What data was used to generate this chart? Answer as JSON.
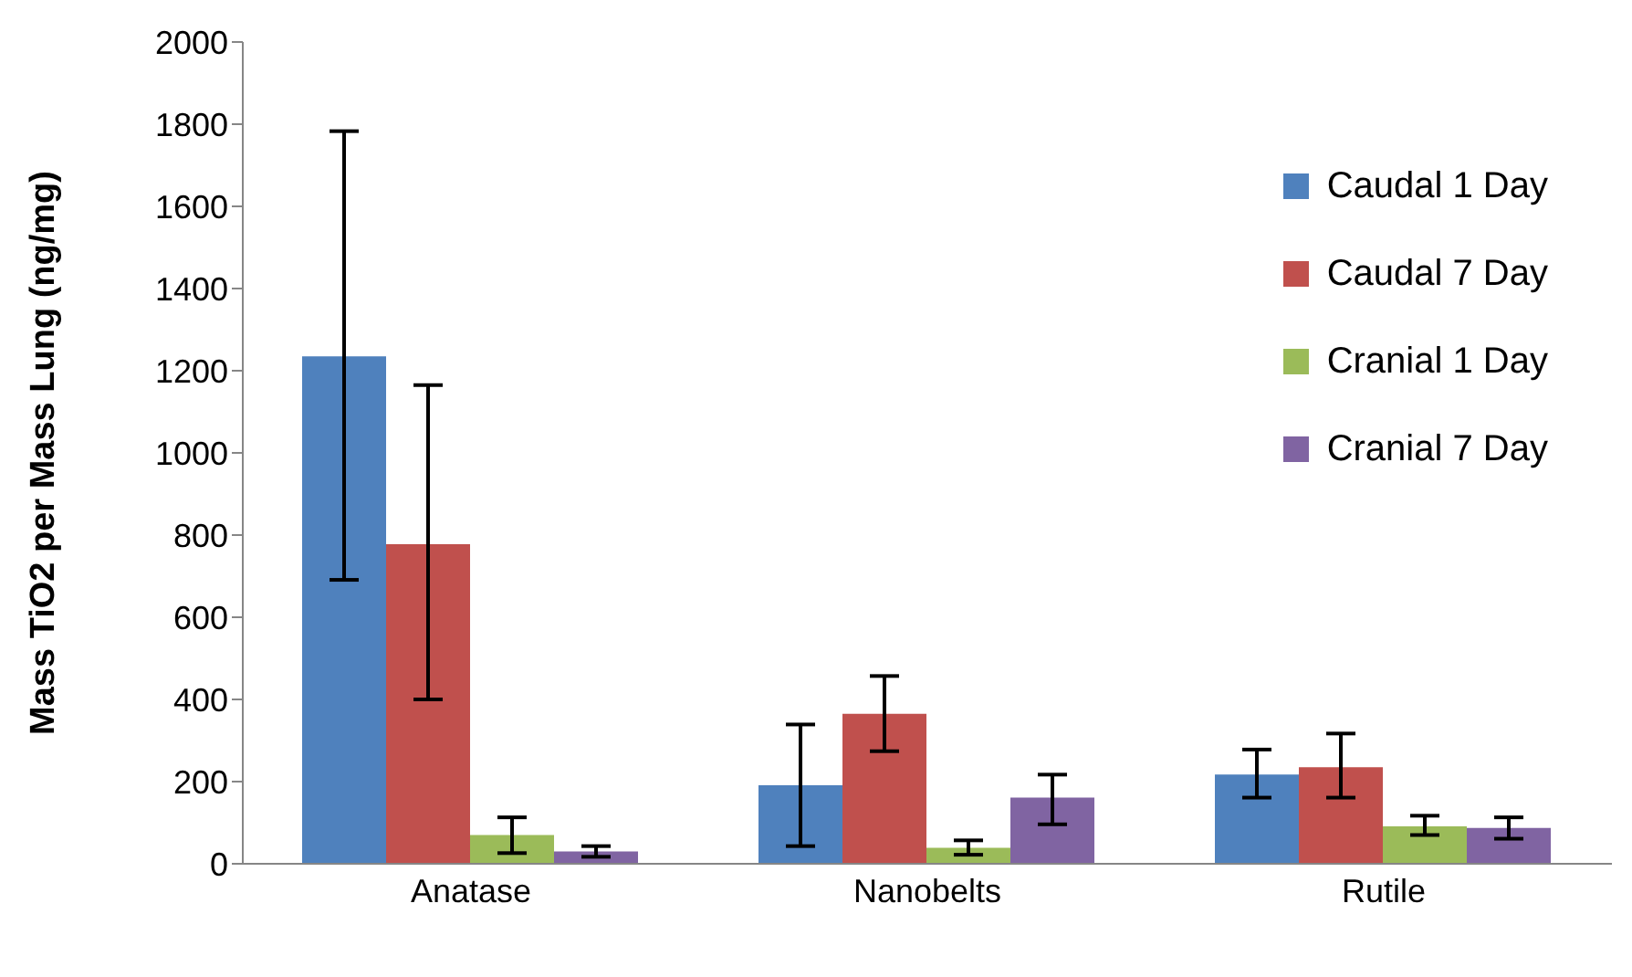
{
  "chart_data": {
    "type": "bar",
    "ylabel": "Mass TiO2 per Mass Lung (ng/mg)",
    "categories": [
      "Anatase",
      "Nanobelts",
      "Rutile"
    ],
    "series": [
      {
        "name": "Caudal 1 Day",
        "color": "#4f81bd",
        "values": [
          1235,
          191,
          217
        ],
        "errors": [
          [
            691,
            1783
          ],
          [
            43,
            339
          ],
          [
            161,
            278
          ]
        ]
      },
      {
        "name": "Caudal 7 Day",
        "color": "#c0504d",
        "values": [
          778,
          365,
          235
        ],
        "errors": [
          [
            400,
            1165
          ],
          [
            274,
            457
          ],
          [
            161,
            317
          ]
        ]
      },
      {
        "name": "Cranial 1 Day",
        "color": "#9bbb59",
        "values": [
          70,
          39,
          91
        ],
        "errors": [
          [
            26,
            113
          ],
          [
            22,
            57
          ],
          [
            70,
            117
          ]
        ]
      },
      {
        "name": "Cranial 7 Day",
        "color": "#8064a2",
        "values": [
          30,
          161,
          87
        ],
        "errors": [
          [
            17,
            43
          ],
          [
            96,
            217
          ],
          [
            61,
            113
          ]
        ]
      }
    ],
    "ylim": [
      0,
      2000
    ],
    "yticks": [
      0,
      200,
      400,
      600,
      800,
      1000,
      1200,
      1400,
      1600,
      1800,
      2000
    ],
    "legend": "top right"
  }
}
